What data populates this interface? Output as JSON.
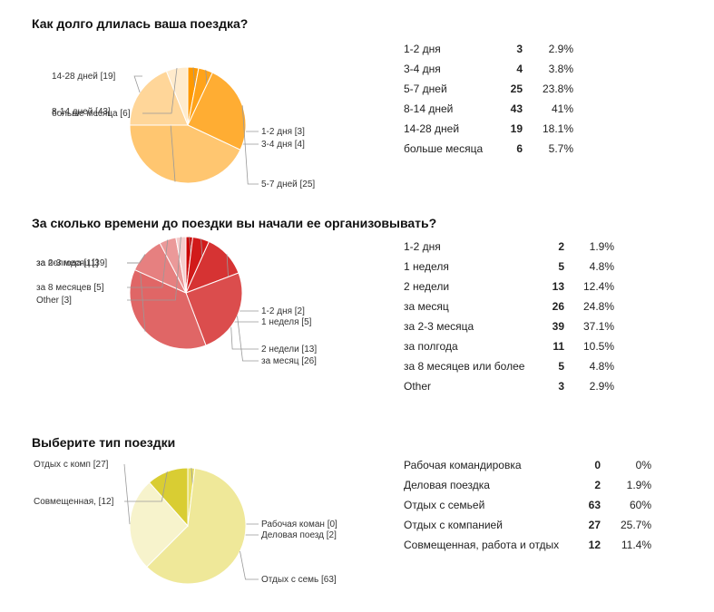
{
  "chart_data": [
    {
      "type": "pie",
      "title": "Как долго длилась ваша поездка?",
      "colors": [
        "#ff9900",
        "#ffa31a",
        "#ffad33",
        "#ffc670",
        "#ffd699",
        "#ffebcc"
      ],
      "slices": [
        {
          "label": "1-2 дня",
          "value": 3,
          "percent": "2.9%",
          "pie_label": "1-2 дня [3]"
        },
        {
          "label": "3-4 дня",
          "value": 4,
          "percent": "3.8%",
          "pie_label": "3-4 дня [4]"
        },
        {
          "label": "5-7 дней",
          "value": 25,
          "percent": "23.8%",
          "pie_label": "5-7 дней [25]"
        },
        {
          "label": "8-14 дней",
          "value": 43,
          "percent": "41%",
          "pie_label": "8-14 дней [43]"
        },
        {
          "label": "14-28 дней",
          "value": 19,
          "percent": "18.1%",
          "pie_label": "14-28 дней [19]"
        },
        {
          "label": "больше месяца",
          "value": 6,
          "percent": "5.7%",
          "pie_label": "больше месяца [6]"
        }
      ]
    },
    {
      "type": "pie",
      "title": "За сколько времени до поездки вы начали ее организовывать?",
      "colors": [
        "#cc0000",
        "#d11a1a",
        "#d63333",
        "#db4d4d",
        "#e06666",
        "#e68080",
        "#eb9999",
        "#f5cccc"
      ],
      "slices": [
        {
          "label": "1-2 дня",
          "value": 2,
          "percent": "1.9%",
          "pie_label": "1-2 дня [2]"
        },
        {
          "label": "1 неделя",
          "value": 5,
          "percent": "4.8%",
          "pie_label": "1 неделя [5]"
        },
        {
          "label": "2 недели",
          "value": 13,
          "percent": "12.4%",
          "pie_label": "2 недели [13]"
        },
        {
          "label": "за месяц",
          "value": 26,
          "percent": "24.8%",
          "pie_label": "за месяц [26]"
        },
        {
          "label": "за 2-3 месяца",
          "value": 39,
          "percent": "37.1%",
          "pie_label": "за 2-3 месяц [39]"
        },
        {
          "label": "за полгода",
          "value": 11,
          "percent": "10.5%",
          "pie_label": "за полгода [11]"
        },
        {
          "label": "за 8 месяцев или более",
          "value": 5,
          "percent": "4.8%",
          "pie_label": "за 8 месяцев  [5]"
        },
        {
          "label": "Other",
          "value": 3,
          "percent": "2.9%",
          "pie_label": "Other [3]"
        }
      ]
    },
    {
      "type": "pie",
      "title": "Выберите тип поездки",
      "colors": [
        "#d4c800",
        "#e8df66",
        "#efe899",
        "#f7f3cc",
        "#d9cd33"
      ],
      "slices": [
        {
          "label": "Рабочая командировка",
          "value": 0,
          "percent": "0%",
          "pie_label": "Рабочая коман [0]"
        },
        {
          "label": "Деловая поездка",
          "value": 2,
          "percent": "1.9%",
          "pie_label": "Деловая поезд [2]"
        },
        {
          "label": "Отдых с семьей",
          "value": 63,
          "percent": "60%",
          "pie_label": "Отдых с семь [63]"
        },
        {
          "label": "Отдых с компанией",
          "value": 27,
          "percent": "25.7%",
          "pie_label": "Отдых с комп [27]"
        },
        {
          "label": "Совмещенная, работа и отдых",
          "value": 12,
          "percent": "11.4%",
          "pie_label": "Совмещенная, [12]"
        }
      ]
    }
  ]
}
